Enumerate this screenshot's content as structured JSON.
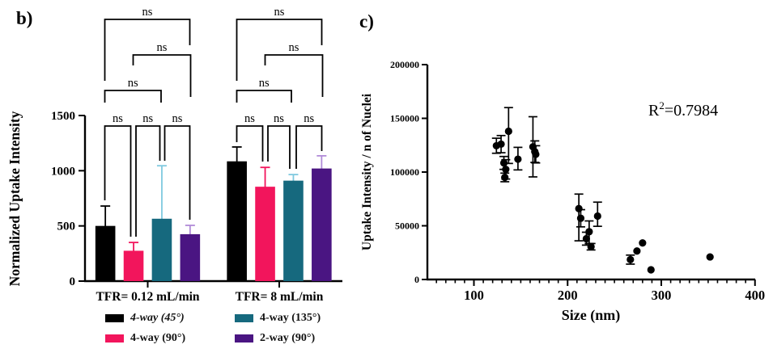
{
  "figure": {
    "panel_b_label": "b)",
    "panel_c_label": "c)"
  },
  "colors": {
    "axis": "#000000",
    "black": "#000000",
    "pink": "#F2155C",
    "teal": "#16697E",
    "purple": "#4A1582",
    "teal_error": "#7FC9DF",
    "purple_error": "#B18BD8",
    "text": "#000000"
  },
  "chart_data": [
    {
      "type": "bar",
      "title": "",
      "xlabel": "",
      "ylabel": "Normalized Uptake Intensity",
      "ylim": [
        0,
        1500
      ],
      "yticks": [
        0,
        500,
        1000,
        1500
      ],
      "grid": false,
      "legend_position": "bottom",
      "categories": [
        "TFR= 0.12 mL/min",
        "TFR= 8 mL/min"
      ],
      "series": [
        {
          "name": "4-way (45°)",
          "color": "#000000",
          "error_color": "#000000",
          "italic": true,
          "values": [
            500,
            1085
          ],
          "error_top": [
            680,
            1215
          ]
        },
        {
          "name": "4-way (90°)",
          "color": "#F2155C",
          "error_color": "#F2155C",
          "italic": false,
          "values": [
            275,
            855
          ],
          "error_top": [
            350,
            1030
          ]
        },
        {
          "name": "4-way (135°)",
          "color": "#16697E",
          "error_color": "#7FC9DF",
          "italic": false,
          "values": [
            565,
            910
          ],
          "error_top": [
            1045,
            965
          ]
        },
        {
          "name": "2-way (90°)",
          "color": "#4A1582",
          "error_color": "#B18BD8",
          "italic": false,
          "values": [
            425,
            1020
          ],
          "error_top": [
            505,
            1135
          ]
        }
      ],
      "significance_brackets": [
        {
          "label": "ns",
          "x1": 129.5,
          "x2": 234.5,
          "y": 24,
          "leg1": 100,
          "leg2": 56
        },
        {
          "label": "ns",
          "x1": 164.5,
          "x2": 235.5,
          "y": 68,
          "leg1": 81,
          "leg2": 120
        },
        {
          "label": "ns",
          "x1": 129.5,
          "x2": 199,
          "y": 112,
          "leg1": 127,
          "leg2": 127
        },
        {
          "label": "ns",
          "x1": 129.5,
          "x2": 161.5,
          "y": 156,
          "leg1": 248,
          "leg2": 293
        },
        {
          "label": "ns",
          "x1": 168,
          "x2": 197.5,
          "y": 156,
          "leg1": 293,
          "leg2": 199
        },
        {
          "label": "ns",
          "x1": 203.5,
          "x2": 234.5,
          "y": 156,
          "leg1": 199,
          "leg2": 272
        },
        {
          "label": "ns",
          "x1": 292.5,
          "x2": 397.5,
          "y": 24,
          "leg1": 100,
          "leg2": 56
        },
        {
          "label": "ns",
          "x1": 327.5,
          "x2": 398.5,
          "y": 68,
          "leg1": 81,
          "leg2": 120
        },
        {
          "label": "ns",
          "x1": 292.5,
          "x2": 360,
          "y": 112,
          "leg1": 127,
          "leg2": 127
        },
        {
          "label": "ns",
          "x1": 292.5,
          "x2": 324.5,
          "y": 156,
          "leg1": 176,
          "leg2": 200
        },
        {
          "label": "ns",
          "x1": 331,
          "x2": 358,
          "y": 156,
          "leg1": 200,
          "leg2": 209
        },
        {
          "label": "ns",
          "x1": 366,
          "x2": 397.5,
          "y": 156,
          "leg1": 209,
          "leg2": 187
        }
      ]
    },
    {
      "type": "scatter",
      "title": "",
      "xlabel": "Size (nm)",
      "ylabel": "Uptake Intensity / n of Nuclei",
      "xlim": [
        50,
        400
      ],
      "ylim": [
        0,
        200000
      ],
      "xticks": [
        100,
        200,
        300,
        400
      ],
      "yticks": [
        0,
        50000,
        100000,
        150000,
        200000
      ],
      "minor_xtick_step": 10,
      "grid": false,
      "annotation": {
        "prefix": "R",
        "sup": "2",
        "rest": "=0.7984",
        "full": "R²=0.7984"
      },
      "points": [
        {
          "x": 124,
          "y": 124500,
          "err_up": 7000,
          "err_down": 7000
        },
        {
          "x": 129,
          "y": 126000,
          "err_up": 8000,
          "err_down": 8000
        },
        {
          "x": 137,
          "y": 138000,
          "err_up": 22000,
          "err_down": 30000
        },
        {
          "x": 132,
          "y": 108500,
          "err_up": 6000,
          "err_down": 6000
        },
        {
          "x": 134,
          "y": 102500,
          "err_up": 9000,
          "err_down": 9000
        },
        {
          "x": 133,
          "y": 95000,
          "err_up": 4000,
          "err_down": 4000
        },
        {
          "x": 147,
          "y": 112000,
          "err_up": 11000,
          "err_down": 10000
        },
        {
          "x": 163,
          "y": 123500,
          "err_up": 28000,
          "err_down": 28000
        },
        {
          "x": 165,
          "y": 119000,
          "err_up": 10000,
          "err_down": 10000
        },
        {
          "x": 166,
          "y": 116500,
          "err_up": 8000,
          "err_down": 8000
        },
        {
          "x": 212,
          "y": 66000,
          "err_up": 13500,
          "err_down": 30000
        },
        {
          "x": 214,
          "y": 57000,
          "err_up": 8000,
          "err_down": 8000
        },
        {
          "x": 232,
          "y": 59000,
          "err_up": 13000,
          "err_down": 9500
        },
        {
          "x": 223,
          "y": 44500,
          "err_up": 10000,
          "err_down": 11000
        },
        {
          "x": 220,
          "y": 38000,
          "err_up": 6000,
          "err_down": 6000
        },
        {
          "x": 225,
          "y": 30500,
          "err_up": 3000,
          "err_down": 3000
        },
        {
          "x": 267,
          "y": 18500,
          "err_up": 4200,
          "err_down": 4200
        },
        {
          "x": 274,
          "y": 26500,
          "err_up": 0,
          "err_down": 0
        },
        {
          "x": 280,
          "y": 34000,
          "err_up": 0,
          "err_down": 0
        },
        {
          "x": 289,
          "y": 9000,
          "err_up": 0,
          "err_down": 0
        },
        {
          "x": 352,
          "y": 21000,
          "err_up": 0,
          "err_down": 0
        }
      ]
    }
  ]
}
